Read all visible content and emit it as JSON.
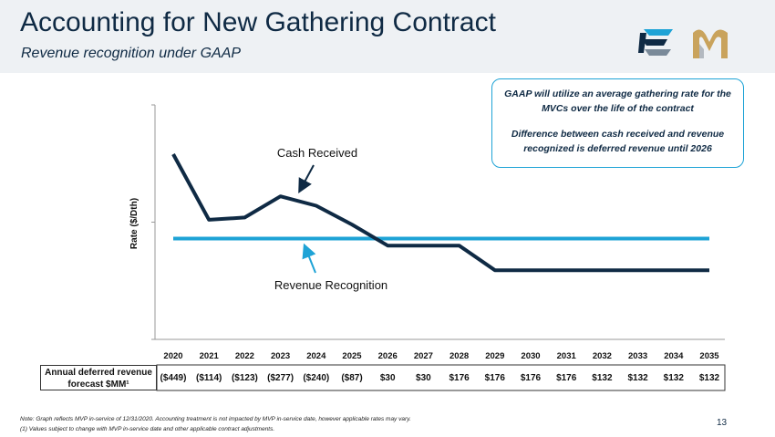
{
  "header": {
    "title": "Accounting for New Gathering Contract",
    "subtitle": "Revenue recognition under GAAP"
  },
  "callout": {
    "line1": "GAAP will utilize an average gathering rate for the MVCs over the life of the contract",
    "line2": "Difference between cash received and revenue recognized is deferred revenue until 2026"
  },
  "chart_data": {
    "type": "line",
    "ylabel": "Rate ($/Dth)",
    "xlabel": "",
    "x": [
      "2020",
      "2021",
      "2022",
      "2023",
      "2024",
      "2025",
      "2026",
      "2027",
      "2028",
      "2029",
      "2030",
      "2031",
      "2032",
      "2033",
      "2034",
      "2035"
    ],
    "ylim": [
      0,
      1
    ],
    "y_ticks_labeled": false,
    "grid": false,
    "series": [
      {
        "name": "Cash Received",
        "color": "#0f2a44",
        "values": [
          0.79,
          0.51,
          0.52,
          0.61,
          0.57,
          0.49,
          0.4,
          0.4,
          0.4,
          0.295,
          0.295,
          0.295,
          0.295,
          0.295,
          0.295,
          0.295
        ]
      },
      {
        "name": "Revenue Recognition",
        "color": "#1ea3d6",
        "values": [
          0.43,
          0.43,
          0.43,
          0.43,
          0.43,
          0.43,
          0.43,
          0.43,
          0.43,
          0.43,
          0.43,
          0.43,
          0.43,
          0.43,
          0.43,
          0.43
        ]
      }
    ],
    "annotations": [
      "Cash Received",
      "Revenue Recognition"
    ]
  },
  "deferred": {
    "label": "Annual deferred revenue forecast $MM¹",
    "values": [
      "($449)",
      "($114)",
      "($123)",
      "($277)",
      "($240)",
      "($87)",
      "$30",
      "$30",
      "$176",
      "$176",
      "$176",
      "$176",
      "$132",
      "$132",
      "$132",
      "$132"
    ]
  },
  "footer": {
    "note": "Note: Graph reflects MVP in-service of 12/31/2020.  Accounting treatment is not impacted by MVP in-service date, however applicable rates may vary.",
    "footnote": "(1) Values subject to change with MVP in-service date and other applicable contract adjustments.",
    "page_number": "13"
  },
  "logos": {
    "left": "equitrans-e-logo",
    "right": "mountain-valley-logo"
  }
}
